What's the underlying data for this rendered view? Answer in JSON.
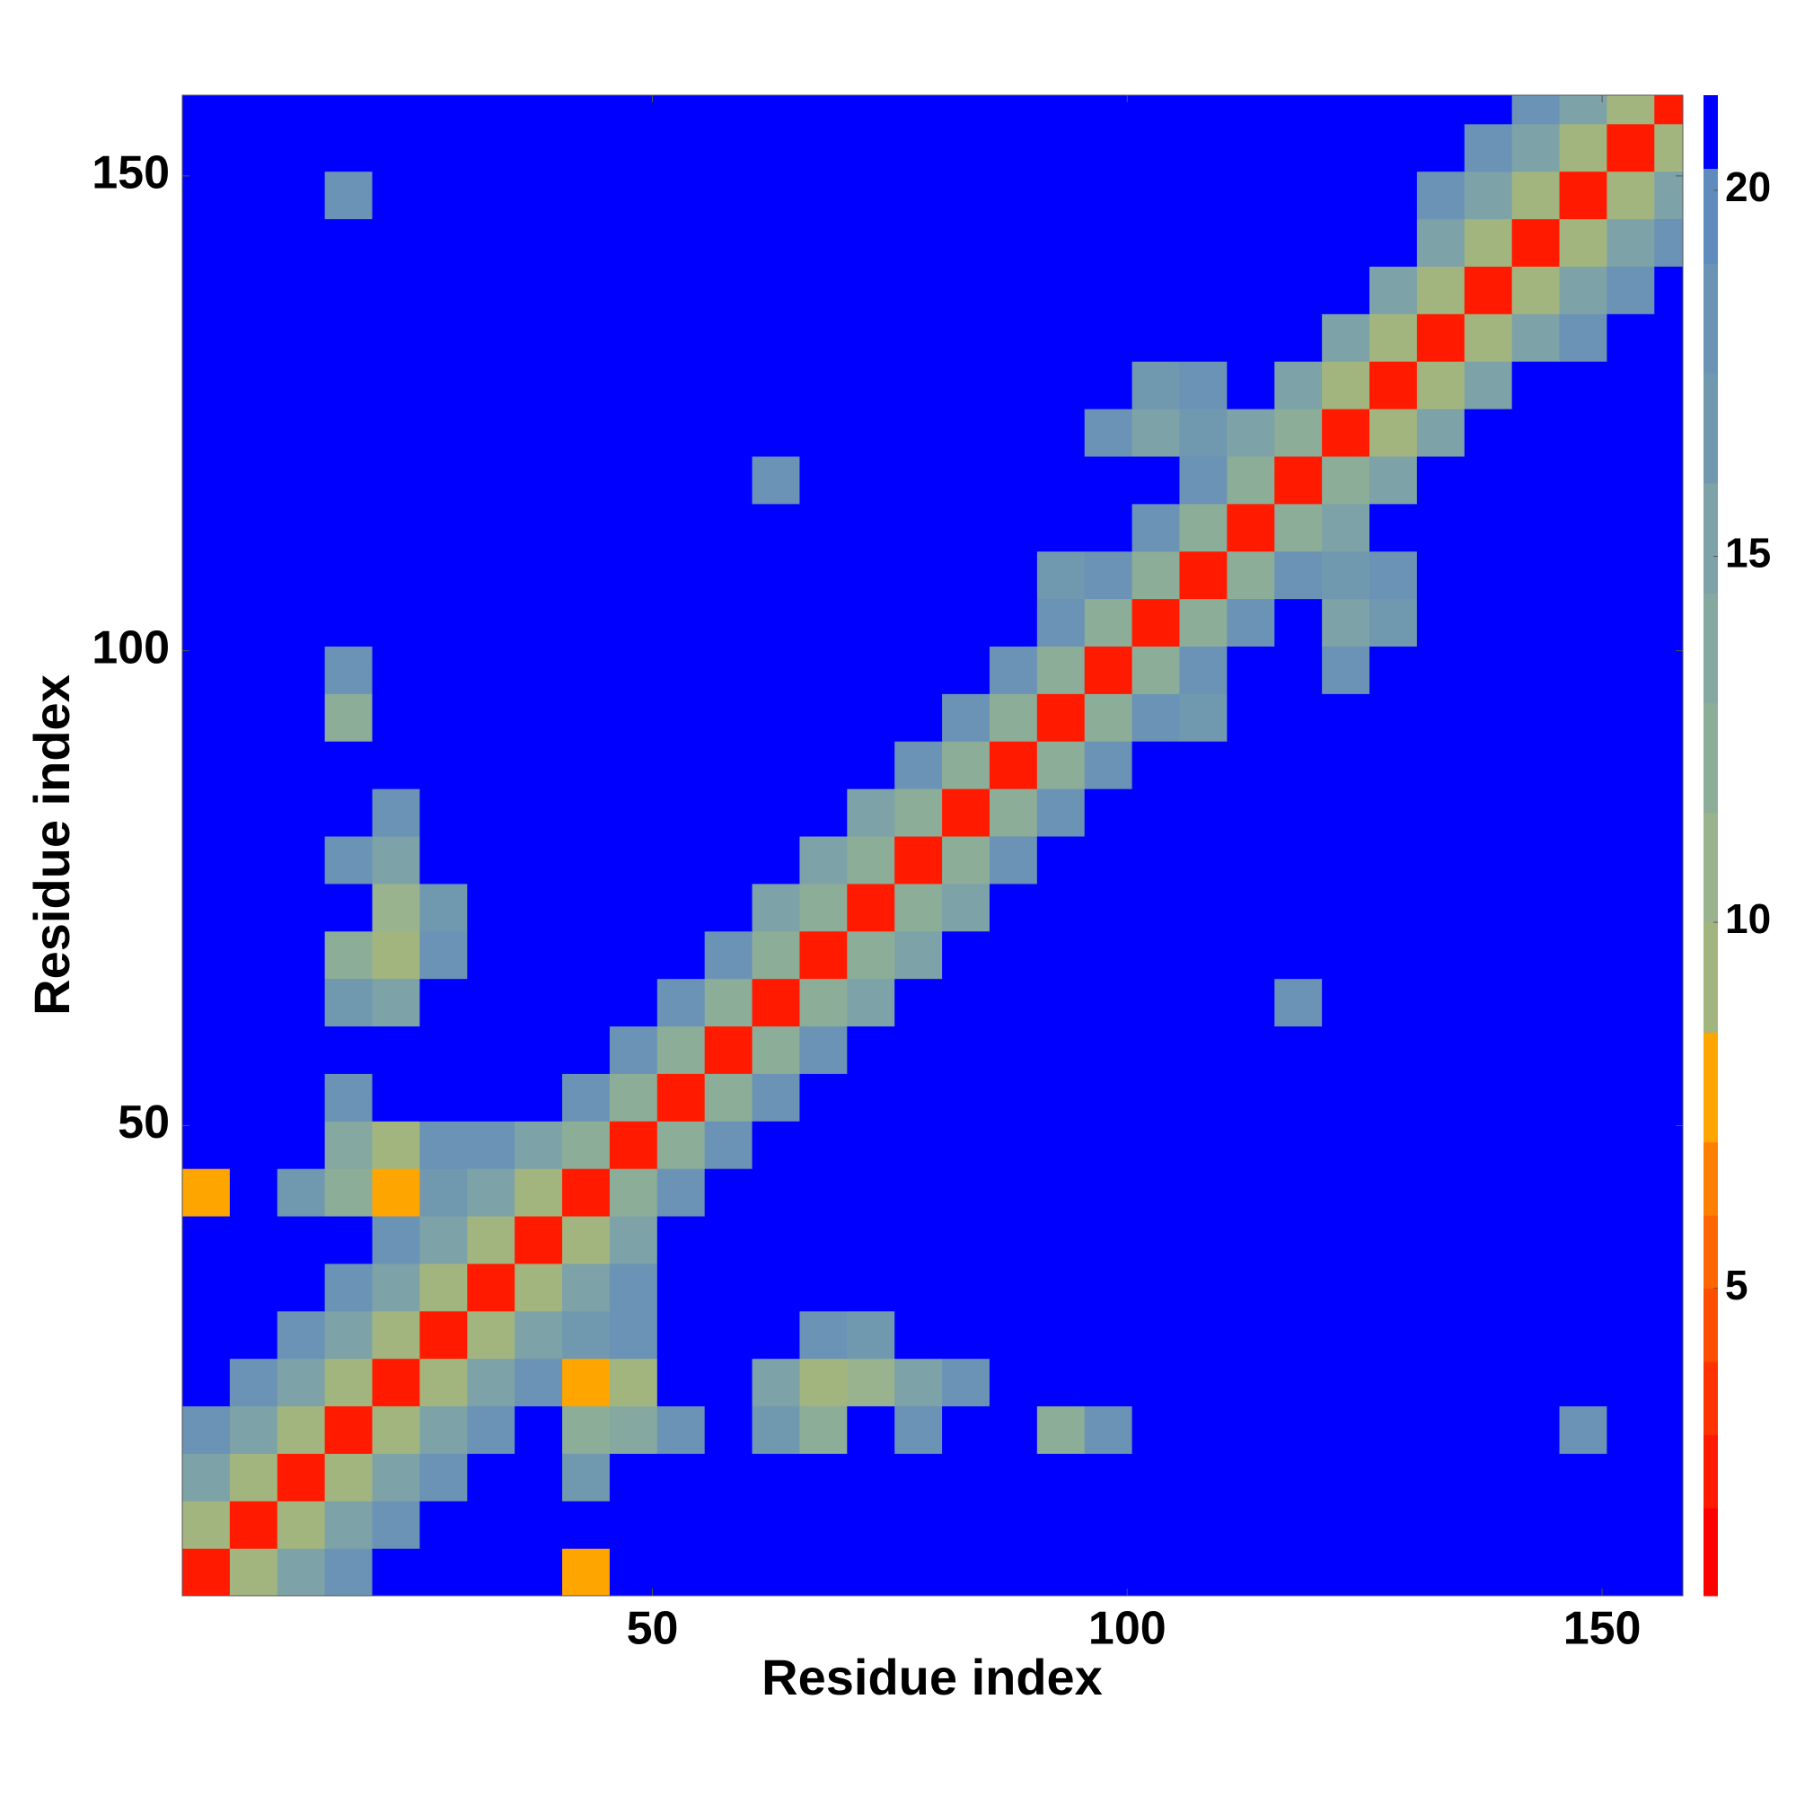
{
  "chart_data": {
    "type": "heatmap",
    "xlabel": "Residue index",
    "ylabel": "Residue index",
    "xlim": [
      0.5,
      158.5
    ],
    "ylim": [
      0.5,
      158.5
    ],
    "xticks": [
      50,
      100,
      150
    ],
    "yticks": [
      50,
      100,
      150
    ],
    "bins": [
      0.5,
      5.5,
      10.5,
      15.5,
      20.5,
      25.5,
      30.5,
      35.5,
      40.5,
      45.5,
      50.5,
      55.5,
      60.5,
      65.5,
      70.5,
      75.5,
      80.5,
      85.5,
      90.5,
      95.5,
      100.5,
      105.5,
      110.5,
      115.5,
      120.5,
      125.5,
      130.5,
      135.5,
      140.5,
      145.5,
      150.5,
      155.5,
      160.5
    ],
    "z": [
      [
        3,
        10,
        15,
        19,
        21,
        21,
        21,
        21,
        8,
        21,
        21,
        21,
        21,
        21,
        21,
        21,
        21,
        21,
        21,
        21,
        21,
        21,
        21,
        21,
        21,
        21,
        21,
        21,
        21,
        21,
        21,
        21
      ],
      [
        10,
        3,
        10,
        15,
        19,
        21,
        21,
        21,
        21,
        21,
        21,
        21,
        21,
        21,
        21,
        21,
        21,
        21,
        21,
        21,
        21,
        21,
        21,
        21,
        21,
        21,
        21,
        21,
        21,
        21,
        21,
        21
      ],
      [
        15,
        10,
        3,
        10,
        15,
        19,
        21,
        21,
        17,
        21,
        21,
        21,
        21,
        21,
        21,
        21,
        21,
        21,
        21,
        21,
        21,
        21,
        21,
        21,
        21,
        21,
        21,
        21,
        21,
        21,
        21,
        21
      ],
      [
        19,
        15,
        10,
        3,
        10,
        15,
        19,
        21,
        12,
        14,
        18,
        21,
        17,
        12,
        21,
        18,
        21,
        21,
        12,
        18,
        21,
        21,
        21,
        21,
        21,
        21,
        21,
        21,
        21,
        18,
        21,
        21
      ],
      [
        21,
        19,
        15,
        10,
        3,
        10,
        15,
        19,
        8,
        10,
        21,
        21,
        16,
        9,
        11,
        15,
        18,
        21,
        21,
        21,
        21,
        21,
        21,
        21,
        21,
        21,
        21,
        21,
        21,
        21,
        21,
        21
      ],
      [
        21,
        21,
        19,
        15,
        10,
        3,
        10,
        15,
        17,
        18,
        21,
        21,
        21,
        18,
        17,
        21,
        21,
        21,
        21,
        21,
        21,
        21,
        21,
        21,
        21,
        21,
        21,
        21,
        21,
        21,
        21,
        21
      ],
      [
        21,
        21,
        21,
        19,
        15,
        10,
        3,
        10,
        15,
        19,
        21,
        21,
        21,
        21,
        21,
        21,
        21,
        21,
        21,
        21,
        21,
        21,
        21,
        21,
        21,
        21,
        21,
        21,
        21,
        21,
        21,
        21
      ],
      [
        21,
        21,
        21,
        21,
        19,
        15,
        10,
        3,
        10,
        15,
        21,
        21,
        21,
        21,
        21,
        21,
        21,
        21,
        21,
        21,
        21,
        21,
        21,
        21,
        21,
        21,
        21,
        21,
        21,
        21,
        21,
        21
      ],
      [
        8,
        21,
        17,
        12,
        8,
        17,
        15,
        10,
        3,
        12,
        18,
        21,
        21,
        21,
        21,
        21,
        21,
        21,
        21,
        21,
        21,
        21,
        21,
        21,
        21,
        21,
        21,
        21,
        21,
        21,
        21,
        21
      ],
      [
        21,
        21,
        21,
        14,
        10,
        18,
        19,
        15,
        12,
        3,
        12,
        18,
        21,
        21,
        21,
        21,
        21,
        21,
        21,
        21,
        21,
        21,
        21,
        21,
        21,
        21,
        21,
        21,
        21,
        21,
        21,
        21
      ],
      [
        21,
        21,
        21,
        18,
        21,
        21,
        21,
        21,
        18,
        12,
        3,
        12,
        18,
        21,
        21,
        21,
        21,
        21,
        21,
        21,
        21,
        21,
        21,
        21,
        21,
        21,
        21,
        21,
        21,
        21,
        21,
        21
      ],
      [
        21,
        21,
        21,
        21,
        21,
        21,
        21,
        21,
        21,
        18,
        12,
        3,
        12,
        18,
        21,
        21,
        21,
        21,
        21,
        21,
        21,
        21,
        21,
        21,
        21,
        21,
        21,
        21,
        21,
        21,
        21,
        21
      ],
      [
        21,
        21,
        21,
        17,
        16,
        21,
        21,
        21,
        21,
        21,
        18,
        12,
        3,
        12,
        15,
        21,
        21,
        21,
        21,
        21,
        21,
        21,
        21,
        18,
        21,
        21,
        21,
        21,
        21,
        21,
        21,
        21
      ],
      [
        21,
        21,
        21,
        12,
        9,
        18,
        21,
        21,
        21,
        21,
        21,
        18,
        12,
        3,
        12,
        15,
        21,
        21,
        21,
        21,
        21,
        21,
        21,
        21,
        21,
        21,
        21,
        21,
        21,
        21,
        21,
        21
      ],
      [
        21,
        21,
        21,
        21,
        11,
        17,
        21,
        21,
        21,
        21,
        21,
        21,
        15,
        12,
        3,
        12,
        15,
        21,
        21,
        21,
        21,
        21,
        21,
        21,
        21,
        21,
        21,
        21,
        21,
        21,
        21,
        21
      ],
      [
        21,
        21,
        21,
        18,
        15,
        21,
        21,
        21,
        21,
        21,
        21,
        21,
        21,
        15,
        12,
        3,
        12,
        18,
        21,
        21,
        21,
        21,
        21,
        21,
        21,
        21,
        21,
        21,
        21,
        21,
        21,
        21
      ],
      [
        21,
        21,
        21,
        21,
        18,
        21,
        21,
        21,
        21,
        21,
        21,
        21,
        21,
        21,
        15,
        12,
        3,
        12,
        18,
        21,
        21,
        21,
        21,
        21,
        21,
        21,
        21,
        21,
        21,
        21,
        21,
        21
      ],
      [
        21,
        21,
        21,
        21,
        21,
        21,
        21,
        21,
        21,
        21,
        21,
        21,
        21,
        21,
        21,
        18,
        12,
        3,
        12,
        18,
        21,
        21,
        21,
        21,
        21,
        21,
        21,
        21,
        21,
        21,
        21,
        21
      ],
      [
        21,
        21,
        21,
        12,
        21,
        21,
        21,
        21,
        21,
        21,
        21,
        21,
        21,
        21,
        21,
        21,
        18,
        12,
        3,
        12,
        18,
        17,
        21,
        21,
        21,
        21,
        21,
        21,
        21,
        21,
        21,
        21
      ],
      [
        21,
        21,
        21,
        18,
        21,
        21,
        21,
        21,
        21,
        21,
        21,
        21,
        21,
        21,
        21,
        21,
        21,
        18,
        12,
        3,
        12,
        18,
        21,
        21,
        18,
        21,
        21,
        21,
        21,
        21,
        21,
        21
      ],
      [
        21,
        21,
        21,
        21,
        21,
        21,
        21,
        21,
        21,
        21,
        21,
        21,
        21,
        21,
        21,
        21,
        21,
        21,
        18,
        12,
        3,
        12,
        18,
        21,
        16,
        17,
        21,
        21,
        21,
        21,
        21,
        21
      ],
      [
        21,
        21,
        21,
        21,
        21,
        21,
        21,
        21,
        21,
        21,
        21,
        21,
        21,
        21,
        21,
        21,
        21,
        21,
        17,
        18,
        12,
        3,
        12,
        18,
        17,
        18,
        21,
        21,
        21,
        21,
        21,
        21
      ],
      [
        21,
        21,
        21,
        21,
        21,
        21,
        21,
        21,
        21,
        21,
        21,
        21,
        21,
        21,
        21,
        21,
        21,
        21,
        21,
        21,
        18,
        12,
        3,
        12,
        15,
        21,
        21,
        21,
        21,
        21,
        21,
        21
      ],
      [
        21,
        21,
        21,
        21,
        21,
        21,
        21,
        21,
        21,
        21,
        21,
        21,
        18,
        21,
        21,
        21,
        21,
        21,
        21,
        21,
        21,
        18,
        12,
        3,
        12,
        15,
        21,
        21,
        21,
        21,
        21,
        21
      ],
      [
        21,
        21,
        21,
        21,
        21,
        21,
        21,
        21,
        21,
        21,
        21,
        21,
        21,
        21,
        21,
        21,
        21,
        21,
        21,
        18,
        16,
        17,
        15,
        12,
        3,
        10,
        15,
        21,
        21,
        21,
        21,
        21
      ],
      [
        21,
        21,
        21,
        21,
        21,
        21,
        21,
        21,
        21,
        21,
        21,
        21,
        21,
        21,
        21,
        21,
        21,
        21,
        21,
        21,
        17,
        18,
        21,
        15,
        10,
        3,
        10,
        15,
        21,
        21,
        21,
        21
      ],
      [
        21,
        21,
        21,
        21,
        21,
        21,
        21,
        21,
        21,
        21,
        21,
        21,
        21,
        21,
        21,
        21,
        21,
        21,
        21,
        21,
        21,
        21,
        21,
        21,
        15,
        10,
        3,
        10,
        15,
        19,
        21,
        21
      ],
      [
        21,
        21,
        21,
        21,
        21,
        21,
        21,
        21,
        21,
        21,
        21,
        21,
        21,
        21,
        21,
        21,
        21,
        21,
        21,
        21,
        21,
        21,
        21,
        21,
        21,
        15,
        10,
        3,
        10,
        15,
        19,
        21
      ],
      [
        21,
        21,
        21,
        21,
        21,
        21,
        21,
        21,
        21,
        21,
        21,
        21,
        21,
        21,
        21,
        21,
        21,
        21,
        21,
        21,
        21,
        21,
        21,
        21,
        21,
        21,
        15,
        10,
        3,
        10,
        15,
        19
      ],
      [
        21,
        21,
        21,
        18,
        21,
        21,
        21,
        21,
        21,
        21,
        21,
        21,
        21,
        21,
        21,
        21,
        21,
        21,
        21,
        21,
        21,
        21,
        21,
        21,
        21,
        21,
        19,
        15,
        10,
        3,
        10,
        15
      ],
      [
        21,
        21,
        21,
        21,
        21,
        21,
        21,
        21,
        21,
        21,
        21,
        21,
        21,
        21,
        21,
        21,
        21,
        21,
        21,
        21,
        21,
        21,
        21,
        21,
        21,
        21,
        21,
        19,
        15,
        10,
        3,
        10
      ],
      [
        21,
        21,
        21,
        21,
        21,
        21,
        21,
        21,
        21,
        21,
        21,
        21,
        21,
        21,
        21,
        21,
        21,
        21,
        21,
        21,
        21,
        21,
        21,
        21,
        21,
        21,
        21,
        21,
        19,
        15,
        10,
        3
      ]
    ],
    "colorbar": {
      "lim": [
        0.8,
        21.3
      ],
      "ticks": [
        5,
        10,
        15,
        20
      ],
      "levels": [
        0.8,
        2,
        3,
        4,
        5,
        6,
        7,
        8.5,
        10,
        11.5,
        13,
        14.5,
        16,
        17.5,
        19,
        20.3,
        21.3
      ],
      "colors": [
        "#ff0000",
        "#ff1a00",
        "#ff3300",
        "#ff4d00",
        "#ff6600",
        "#ff8000",
        "#ffa500",
        "#a3b57f",
        "#98b38d",
        "#8cad98",
        "#85a8a0",
        "#7da2a8",
        "#7099b0",
        "#6a93b5",
        "#5f8cbd",
        "#0000ff"
      ]
    }
  }
}
